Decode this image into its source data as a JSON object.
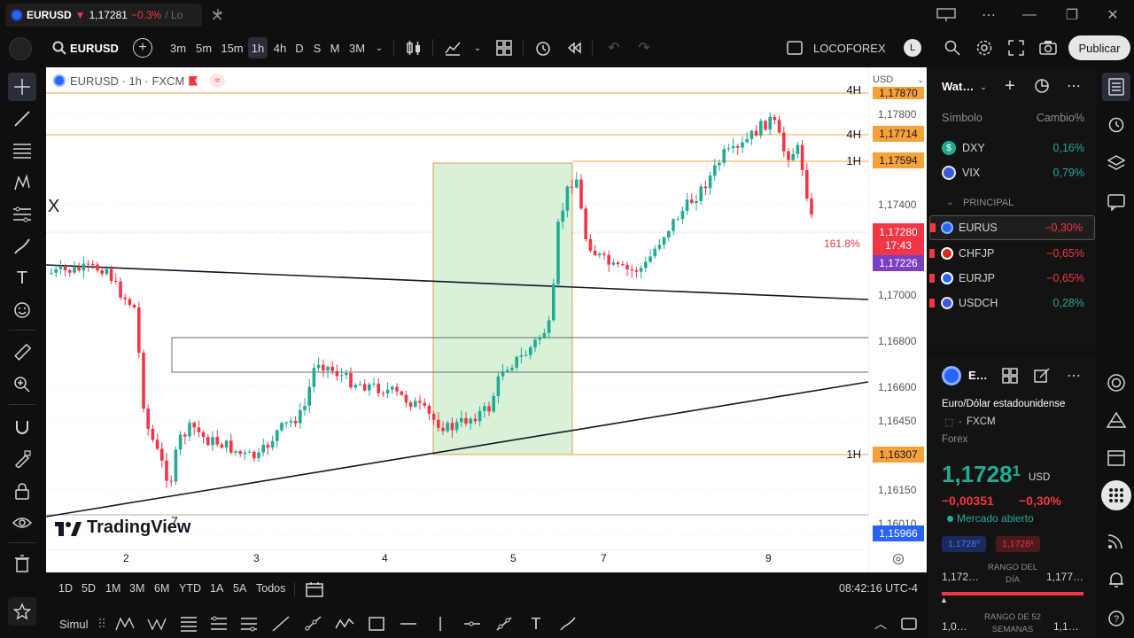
{
  "tab": {
    "symbol": "EURUSD",
    "arrow": "▼",
    "price": "1,17281",
    "change": "−0.3%",
    "sep": "/ Lo",
    "new_tab": "+"
  },
  "window": {
    "minimize": "—",
    "maximize": "❐",
    "close": "✕"
  },
  "toolbar": {
    "symbol": "EURUSD",
    "intervals": [
      "3m",
      "5m",
      "15m",
      "1h",
      "4h",
      "D",
      "S",
      "M",
      "3M"
    ],
    "active_interval": "1h",
    "layout_name": "LOCOFOREX",
    "layout_avatar": "L",
    "publish": "Publicar"
  },
  "chart": {
    "legend_symbol": "EURUSD · 1h · FXCM",
    "currency": "USD",
    "tradingview_logo": "TradingView",
    "marker_x": "X",
    "marker_7": "7",
    "fib_label": "161.8%",
    "x_labels": [
      "2",
      "3",
      "4",
      "5",
      "7",
      "9"
    ],
    "price_labels": [
      "1,17800",
      "1,17400",
      "1,17000",
      "1,16800",
      "1,16600",
      "1,16450",
      "1,16150",
      "1,16010"
    ],
    "line_tags": [
      {
        "tf": "4H",
        "price": "1,17870"
      },
      {
        "tf": "4H",
        "price": "1,17714"
      },
      {
        "tf": "1H",
        "price": "1,17594"
      },
      {
        "tf": "1H",
        "price": "1,16307"
      }
    ],
    "last_price": "1,17280",
    "countdown": "17:43",
    "purple_price": "1,17226",
    "blue_price": "1,15966",
    "colors": {
      "up": "#22ab94",
      "down": "#f23645",
      "orange": "#f7a13a",
      "green_box": "#d9f0d9"
    }
  },
  "bottom": {
    "ranges": [
      "1D",
      "5D",
      "1M",
      "3M",
      "6M",
      "YTD",
      "1A",
      "5A",
      "Todos"
    ],
    "time": "08:42:16 UTC-4"
  },
  "drawbar": {
    "label": "Simul"
  },
  "watchlist": {
    "title": "Wat…",
    "col_symbol": "Símbolo",
    "col_change": "Cambio%",
    "items_top": [
      {
        "sym": "DXY",
        "chg": "0,16%",
        "dir": "up"
      },
      {
        "sym": "VIX",
        "chg": "0,79%",
        "dir": "up"
      }
    ],
    "section": "PRINCIPAL",
    "items_main": [
      {
        "sym": "EURUS",
        "chg": "−0,30%",
        "dir": "down"
      },
      {
        "sym": "CHFJP",
        "chg": "−0,65%",
        "dir": "down"
      },
      {
        "sym": "EURJP",
        "chg": "−0,65%",
        "dir": "down"
      },
      {
        "sym": "USDCH",
        "chg": "0,28%",
        "dir": "up"
      }
    ]
  },
  "details": {
    "short": "E…",
    "name": "Euro/Dólar estadounidense",
    "exchange": "FXCM",
    "type": "Forex",
    "price": "1,1728",
    "price_small": "1",
    "currency": "USD",
    "change": "−0,00351",
    "change_pct": "−0,30%",
    "market": "Mercado abierto",
    "bid": "1,1728⁰",
    "ask": "1,1728¹",
    "day_low": "1,172…",
    "day_range": "RANGO DEL DÍA",
    "day_high": "1,177…",
    "w52_low": "1,0…",
    "w52_range": "RANGO DE 52 SEMANAS",
    "w52_high": "1,1…"
  }
}
